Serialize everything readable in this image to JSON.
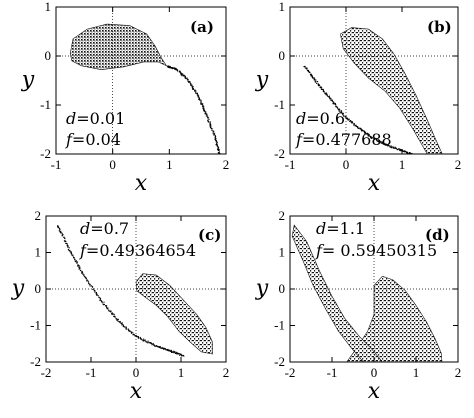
{
  "chart_data": [
    {
      "type": "scatter",
      "panel_label": "(a)",
      "xlabel": "x",
      "ylabel": "y",
      "xlim": [
        -1,
        2
      ],
      "ylim": [
        -2,
        1
      ],
      "xticks": [
        "-1",
        "0",
        "1",
        "2"
      ],
      "yticks": [
        "-2",
        "-1",
        "0",
        "1"
      ],
      "grid": "dotted lines at x=0 and y=0",
      "annotations": [
        {
          "var": "d",
          "text": "=0.01"
        },
        {
          "var": "f",
          "text": "=0.04"
        }
      ],
      "regions": [
        {
          "kind": "filled-teardrop",
          "outline": [
            [
              -0.75,
              0.05
            ],
            [
              -0.7,
              0.35
            ],
            [
              -0.45,
              0.55
            ],
            [
              -0.1,
              0.65
            ],
            [
              0.3,
              0.62
            ],
            [
              0.6,
              0.45
            ],
            [
              0.75,
              0.2
            ],
            [
              0.85,
              -0.02
            ],
            [
              0.95,
              -0.2
            ],
            [
              0.8,
              -0.12
            ],
            [
              0.55,
              -0.12
            ],
            [
              0.2,
              -0.22
            ],
            [
              -0.2,
              -0.28
            ],
            [
              -0.55,
              -0.2
            ],
            [
              -0.72,
              -0.1
            ]
          ]
        },
        {
          "kind": "curve-scatter",
          "path": [
            [
              0.95,
              -0.2
            ],
            [
              1.1,
              -0.25
            ],
            [
              1.3,
              -0.45
            ],
            [
              1.5,
              -0.8
            ],
            [
              1.65,
              -1.2
            ],
            [
              1.8,
              -1.65
            ],
            [
              1.88,
              -2.0
            ]
          ]
        }
      ]
    },
    {
      "type": "scatter",
      "panel_label": "(b)",
      "xlabel": "x",
      "ylabel": "y",
      "xlim": [
        -1,
        2
      ],
      "ylim": [
        -2,
        1
      ],
      "xticks": [
        "-1",
        "0",
        "1",
        "2"
      ],
      "yticks": [
        "-2",
        "-1",
        "0",
        "1"
      ],
      "grid": "dotted lines at x=0 and y=0",
      "annotations": [
        {
          "var": "d",
          "text": "=0.6"
        },
        {
          "var": "f",
          "text": "=0.477688"
        }
      ],
      "regions": [
        {
          "kind": "filled-lobe",
          "outline": [
            [
              -0.1,
              0.45
            ],
            [
              0.1,
              0.58
            ],
            [
              0.4,
              0.55
            ],
            [
              0.65,
              0.35
            ],
            [
              0.85,
              0.05
            ],
            [
              1.05,
              -0.35
            ],
            [
              1.25,
              -0.8
            ],
            [
              1.45,
              -1.3
            ],
            [
              1.6,
              -1.7
            ],
            [
              1.72,
              -2.0
            ],
            [
              1.45,
              -2.0
            ],
            [
              1.2,
              -1.5
            ],
            [
              0.95,
              -1.05
            ],
            [
              0.7,
              -0.72
            ],
            [
              0.4,
              -0.45
            ],
            [
              0.15,
              -0.15
            ],
            [
              -0.05,
              0.15
            ]
          ]
        },
        {
          "kind": "curve-scatter",
          "path": [
            [
              -0.75,
              -0.2
            ],
            [
              -0.55,
              -0.5
            ],
            [
              -0.3,
              -0.85
            ],
            [
              -0.05,
              -1.2
            ],
            [
              0.2,
              -1.45
            ],
            [
              0.45,
              -1.65
            ],
            [
              0.7,
              -1.8
            ],
            [
              0.95,
              -1.9
            ],
            [
              1.2,
              -2.0
            ]
          ]
        }
      ]
    },
    {
      "type": "scatter",
      "panel_label": "(c)",
      "xlabel": "x",
      "ylabel": "y",
      "xlim": [
        -2,
        2
      ],
      "ylim": [
        -2,
        2
      ],
      "xticks": [
        "-2",
        "-1",
        "0",
        "1",
        "2"
      ],
      "yticks": [
        "-2",
        "-1",
        "0",
        "1",
        "2"
      ],
      "grid": "dotted lines at x=0 and y=0",
      "annotations": [
        {
          "var": "d",
          "text": "=0.7"
        },
        {
          "var": "f",
          "text": "=0.49364654"
        }
      ],
      "regions": [
        {
          "kind": "filled-lobe",
          "outline": [
            [
              0.0,
              0.2
            ],
            [
              0.15,
              0.42
            ],
            [
              0.45,
              0.38
            ],
            [
              0.75,
              0.1
            ],
            [
              1.05,
              -0.3
            ],
            [
              1.35,
              -0.7
            ],
            [
              1.55,
              -1.05
            ],
            [
              1.7,
              -1.45
            ],
            [
              1.7,
              -1.78
            ],
            [
              1.45,
              -1.72
            ],
            [
              1.2,
              -1.45
            ],
            [
              0.95,
              -1.15
            ],
            [
              0.7,
              -0.75
            ],
            [
              0.45,
              -0.45
            ],
            [
              0.2,
              -0.22
            ],
            [
              0.02,
              -0.05
            ]
          ]
        },
        {
          "kind": "curve-scatter",
          "path": [
            [
              -1.75,
              1.75
            ],
            [
              -1.5,
              1.1
            ],
            [
              -1.2,
              0.45
            ],
            [
              -0.85,
              -0.2
            ],
            [
              -0.45,
              -0.8
            ],
            [
              -0.05,
              -1.25
            ],
            [
              0.35,
              -1.5
            ],
            [
              0.75,
              -1.68
            ],
            [
              1.05,
              -1.82
            ]
          ]
        }
      ]
    },
    {
      "type": "scatter",
      "panel_label": "(d)",
      "xlabel": "x",
      "ylabel": "y",
      "xlim": [
        -2,
        2
      ],
      "ylim": [
        -2,
        2
      ],
      "xticks": [
        "-2",
        "-1",
        "0",
        "1",
        "2"
      ],
      "yticks": [
        "-2",
        "-1",
        "0",
        "1",
        "2"
      ],
      "grid": "dotted lines at x=0 and y=0",
      "annotations": [
        {
          "var": "d",
          "text": "=1.1"
        },
        {
          "var": "f",
          "text": "= 0.59450315"
        }
      ],
      "regions": [
        {
          "kind": "filled-lobe",
          "outline": [
            [
              0.0,
              0.1
            ],
            [
              0.2,
              0.35
            ],
            [
              0.45,
              0.25
            ],
            [
              0.75,
              -0.05
            ],
            [
              1.0,
              -0.45
            ],
            [
              1.25,
              -0.9
            ],
            [
              1.45,
              -1.35
            ],
            [
              1.6,
              -1.75
            ],
            [
              1.62,
              -2.0
            ],
            [
              -0.65,
              -2.0
            ],
            [
              -0.4,
              -1.6
            ],
            [
              -0.15,
              -1.15
            ],
            [
              0.0,
              -0.7
            ],
            [
              0.0,
              -0.3
            ]
          ]
        },
        {
          "kind": "filled-band",
          "outline": [
            [
              -1.9,
              1.75
            ],
            [
              -1.6,
              1.3
            ],
            [
              -1.3,
              0.5
            ],
            [
              -1.0,
              -0.2
            ],
            [
              -0.7,
              -0.8
            ],
            [
              -0.35,
              -1.3
            ],
            [
              -0.05,
              -1.65
            ],
            [
              0.2,
              -2.0
            ],
            [
              -0.25,
              -2.0
            ],
            [
              -0.55,
              -1.6
            ],
            [
              -0.85,
              -1.15
            ],
            [
              -1.15,
              -0.55
            ],
            [
              -1.45,
              0.1
            ],
            [
              -1.7,
              0.8
            ],
            [
              -1.95,
              1.45
            ]
          ]
        }
      ]
    }
  ]
}
